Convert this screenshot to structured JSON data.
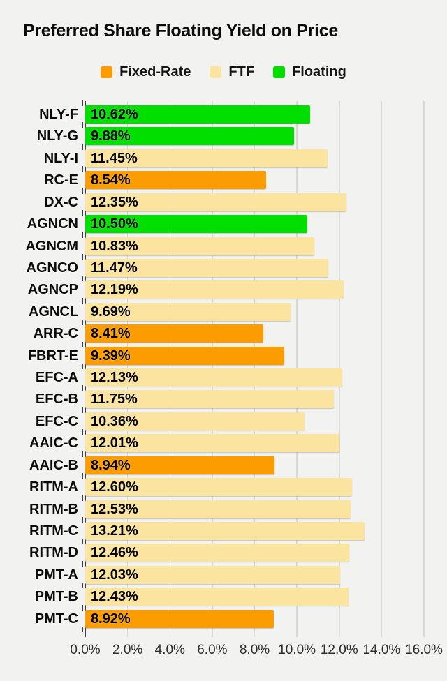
{
  "title": "Preferred Share Floating Yield on Price",
  "legend": [
    {
      "label": "Fixed-Rate",
      "series": "Fixed-Rate",
      "color": "#FB9D00"
    },
    {
      "label": "FTF",
      "series": "FTF",
      "color": "#FBE49F"
    },
    {
      "label": "Floating",
      "series": "Floating",
      "color": "#00DF00"
    }
  ],
  "colors": {
    "background": "#F2F2F0",
    "grid": "#D9D9D6",
    "axis": "#3F3F3F",
    "Fixed-Rate": "#FB9D00",
    "FTF": "#FBE49F",
    "Floating": "#00DF00"
  },
  "chart_data": {
    "type": "bar",
    "orientation": "horizontal",
    "title": "Preferred Share Floating Yield on Price",
    "xlabel": "",
    "ylabel": "",
    "xlim": [
      0,
      16
    ],
    "grid": true,
    "legend_position": "top",
    "x_ticks": [
      "0.0%",
      "2.0%",
      "4.0%",
      "6.0%",
      "8.0%",
      "10.0%",
      "12.0%",
      "14.0%",
      "16.0%"
    ],
    "x_tick_values": [
      0,
      2,
      4,
      6,
      8,
      10,
      12,
      14,
      16
    ],
    "categories": [
      "NLY-F",
      "NLY-G",
      "NLY-I",
      "RC-E",
      "DX-C",
      "AGNCN",
      "AGNCM",
      "AGNCO",
      "AGNCP",
      "AGNCL",
      "ARR-C",
      "FBRT-E",
      "EFC-A",
      "EFC-B",
      "EFC-C",
      "AAIC-C",
      "AAIC-B",
      "RITM-A",
      "RITM-B",
      "RITM-C",
      "RITM-D",
      "PMT-A",
      "PMT-B",
      "PMT-C"
    ],
    "values": [
      10.62,
      9.88,
      11.45,
      8.54,
      12.35,
      10.5,
      10.83,
      11.47,
      12.19,
      9.69,
      8.41,
      9.39,
      12.13,
      11.75,
      10.36,
      12.01,
      8.94,
      12.6,
      12.53,
      13.21,
      12.46,
      12.03,
      12.43,
      8.92
    ],
    "value_labels": [
      "10.62%",
      "9.88%",
      "11.45%",
      "8.54%",
      "12.35%",
      "10.50%",
      "10.83%",
      "11.47%",
      "12.19%",
      "9.69%",
      "8.41%",
      "9.39%",
      "12.13%",
      "11.75%",
      "10.36%",
      "12.01%",
      "8.94%",
      "12.60%",
      "12.53%",
      "13.21%",
      "12.46%",
      "12.03%",
      "12.43%",
      "8.92%"
    ],
    "bar_series": [
      "Floating",
      "Floating",
      "FTF",
      "Fixed-Rate",
      "FTF",
      "Floating",
      "FTF",
      "FTF",
      "FTF",
      "FTF",
      "Fixed-Rate",
      "Fixed-Rate",
      "FTF",
      "FTF",
      "FTF",
      "FTF",
      "Fixed-Rate",
      "FTF",
      "FTF",
      "FTF",
      "FTF",
      "FTF",
      "FTF",
      "Fixed-Rate"
    ]
  }
}
